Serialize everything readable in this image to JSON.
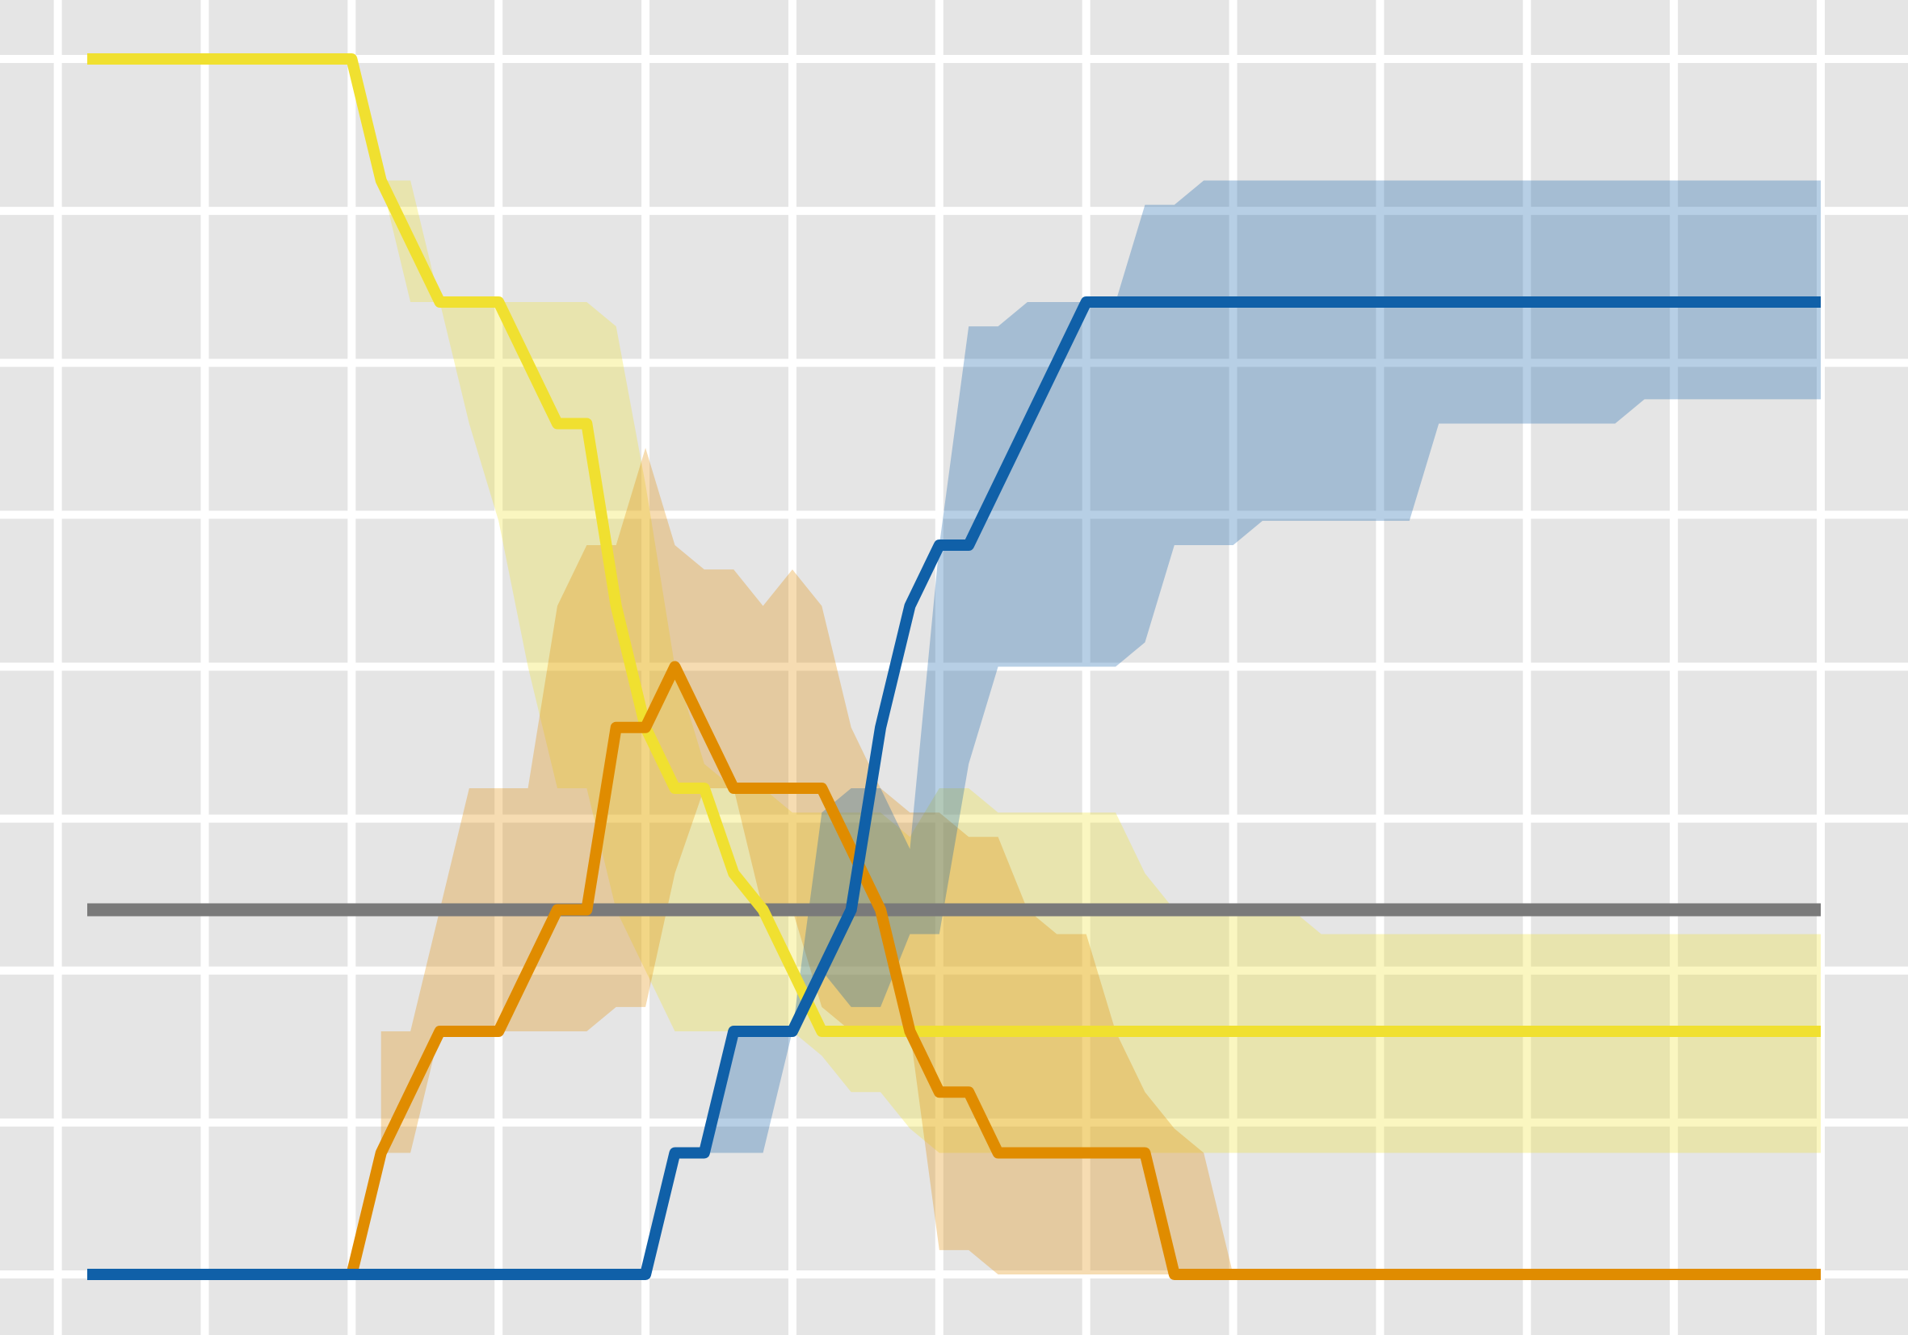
{
  "chart_data": {
    "type": "line",
    "title": "",
    "xlabel": "",
    "ylabel": "",
    "xlim": [
      0,
      59
    ],
    "ylim": [
      0,
      1
    ],
    "grid": true,
    "legend": "none",
    "background": "#e5e5e5",
    "grid_color": "#ffffff",
    "x_gridlines": [
      -1,
      4,
      9,
      14,
      19,
      24,
      29,
      34,
      39,
      44,
      49,
      54,
      59
    ],
    "y_gridlines": [
      0,
      0.125,
      0.25,
      0.375,
      0.5,
      0.625,
      0.75,
      0.875,
      1
    ],
    "reference_line": {
      "y": 0.3,
      "color": "#7a7a7a"
    },
    "series": [
      {
        "color": "#f0e030",
        "x": [
          0,
          9,
          10,
          12,
          14,
          16,
          17,
          18,
          19,
          20,
          21,
          22,
          23,
          24,
          25,
          26,
          27,
          28,
          59
        ],
        "y": [
          1,
          1,
          0.9,
          0.8,
          0.8,
          0.7,
          0.7,
          0.55,
          0.45,
          0.4,
          0.4,
          0.33,
          0.3,
          0.25,
          0.2,
          0.2,
          0.2,
          0.2,
          0.2
        ],
        "band": {
          "x": [
            10,
            11,
            12,
            13,
            14,
            15,
            16,
            17,
            18,
            19,
            20,
            21,
            22,
            23,
            24,
            25,
            26,
            27,
            28,
            29,
            30,
            31,
            32,
            33,
            34,
            35,
            36,
            37,
            38,
            39,
            40,
            41,
            42,
            43,
            44,
            45,
            59
          ],
          "lower": [
            0.9,
            0.8,
            0.8,
            0.7,
            0.62,
            0.5,
            0.4,
            0.4,
            0.3,
            0.25,
            0.2,
            0.2,
            0.2,
            0.2,
            0.2,
            0.18,
            0.15,
            0.15,
            0.12,
            0.1,
            0.1,
            0.1,
            0.1,
            0.1,
            0.1,
            0.1,
            0.1,
            0.1,
            0.1,
            0.1,
            0.1,
            0.1,
            0.1,
            0.1,
            0.1,
            0.1,
            0.1
          ],
          "upper": [
            0.9,
            0.9,
            0.8,
            0.8,
            0.8,
            0.8,
            0.8,
            0.8,
            0.78,
            0.65,
            0.5,
            0.42,
            0.4,
            0.4,
            0.38,
            0.38,
            0.38,
            0.38,
            0.36,
            0.4,
            0.4,
            0.38,
            0.38,
            0.38,
            0.38,
            0.38,
            0.33,
            0.3,
            0.3,
            0.3,
            0.3,
            0.3,
            0.28,
            0.28,
            0.28,
            0.28,
            0.28
          ]
        }
      },
      {
        "color": "#e08c00",
        "x": [
          9,
          10,
          12,
          14,
          16,
          17,
          18,
          19,
          20,
          21,
          22,
          23,
          24,
          25,
          26,
          27,
          28,
          29,
          30,
          31,
          32,
          33,
          34,
          35,
          36,
          37,
          38,
          39,
          40,
          41,
          59
        ],
        "y": [
          0,
          0.1,
          0.2,
          0.2,
          0.3,
          0.3,
          0.45,
          0.45,
          0.5,
          0.45,
          0.4,
          0.4,
          0.4,
          0.4,
          0.35,
          0.3,
          0.2,
          0.15,
          0.15,
          0.1,
          0.1,
          0.1,
          0.1,
          0.1,
          0.1,
          0,
          0,
          0,
          0,
          0,
          0
        ],
        "band": {
          "x": [
            10,
            11,
            12,
            13,
            14,
            15,
            16,
            17,
            18,
            19,
            20,
            21,
            22,
            23,
            24,
            25,
            26,
            27,
            28,
            29,
            30,
            31,
            32,
            33,
            34,
            35,
            36,
            37,
            38,
            39
          ],
          "lower": [
            0.1,
            0.1,
            0.2,
            0.2,
            0.2,
            0.2,
            0.2,
            0.2,
            0.22,
            0.22,
            0.33,
            0.4,
            0.4,
            0.3,
            0.3,
            0.22,
            0.2,
            0.2,
            0.2,
            0.02,
            0.02,
            0,
            0,
            0,
            0,
            0,
            0,
            0,
            0,
            0
          ],
          "upper": [
            0.2,
            0.2,
            0.3,
            0.4,
            0.4,
            0.4,
            0.55,
            0.6,
            0.6,
            0.68,
            0.6,
            0.58,
            0.58,
            0.55,
            0.58,
            0.55,
            0.45,
            0.4,
            0.38,
            0.38,
            0.36,
            0.36,
            0.3,
            0.28,
            0.28,
            0.2,
            0.15,
            0.12,
            0.1,
            0
          ]
        }
      },
      {
        "color": "#1060a8",
        "x": [
          0,
          19,
          20,
          21,
          22,
          23,
          24,
          25,
          26,
          27,
          28,
          29,
          30,
          31,
          32,
          33,
          34,
          35,
          59
        ],
        "y": [
          0,
          0,
          0.1,
          0.1,
          0.2,
          0.2,
          0.2,
          0.25,
          0.3,
          0.45,
          0.55,
          0.6,
          0.6,
          0.65,
          0.7,
          0.75,
          0.8,
          0.8,
          0.8
        ],
        "band": {
          "x": [
            21,
            22,
            23,
            24,
            25,
            26,
            27,
            28,
            29,
            30,
            31,
            32,
            33,
            34,
            35,
            36,
            37,
            38,
            39,
            40,
            41,
            42,
            43,
            44,
            45,
            46,
            47,
            48,
            49,
            50,
            51,
            52,
            53,
            54,
            55,
            56,
            57,
            58,
            59
          ],
          "lower": [
            0.1,
            0.1,
            0.1,
            0.2,
            0.25,
            0.22,
            0.22,
            0.28,
            0.28,
            0.42,
            0.5,
            0.5,
            0.5,
            0.5,
            0.5,
            0.52,
            0.6,
            0.6,
            0.6,
            0.62,
            0.62,
            0.62,
            0.62,
            0.62,
            0.62,
            0.7,
            0.7,
            0.7,
            0.7,
            0.7,
            0.7,
            0.7,
            0.72,
            0.72,
            0.72,
            0.72,
            0.72,
            0.72,
            0.72
          ],
          "upper": [
            0.1,
            0.2,
            0.2,
            0.2,
            0.38,
            0.4,
            0.4,
            0.35,
            0.6,
            0.78,
            0.78,
            0.8,
            0.8,
            0.8,
            0.8,
            0.88,
            0.88,
            0.9,
            0.9,
            0.9,
            0.9,
            0.9,
            0.9,
            0.9,
            0.9,
            0.9,
            0.9,
            0.9,
            0.9,
            0.9,
            0.9,
            0.9,
            0.9,
            0.9,
            0.9,
            0.9,
            0.9,
            0.9,
            0.9
          ]
        }
      }
    ]
  }
}
